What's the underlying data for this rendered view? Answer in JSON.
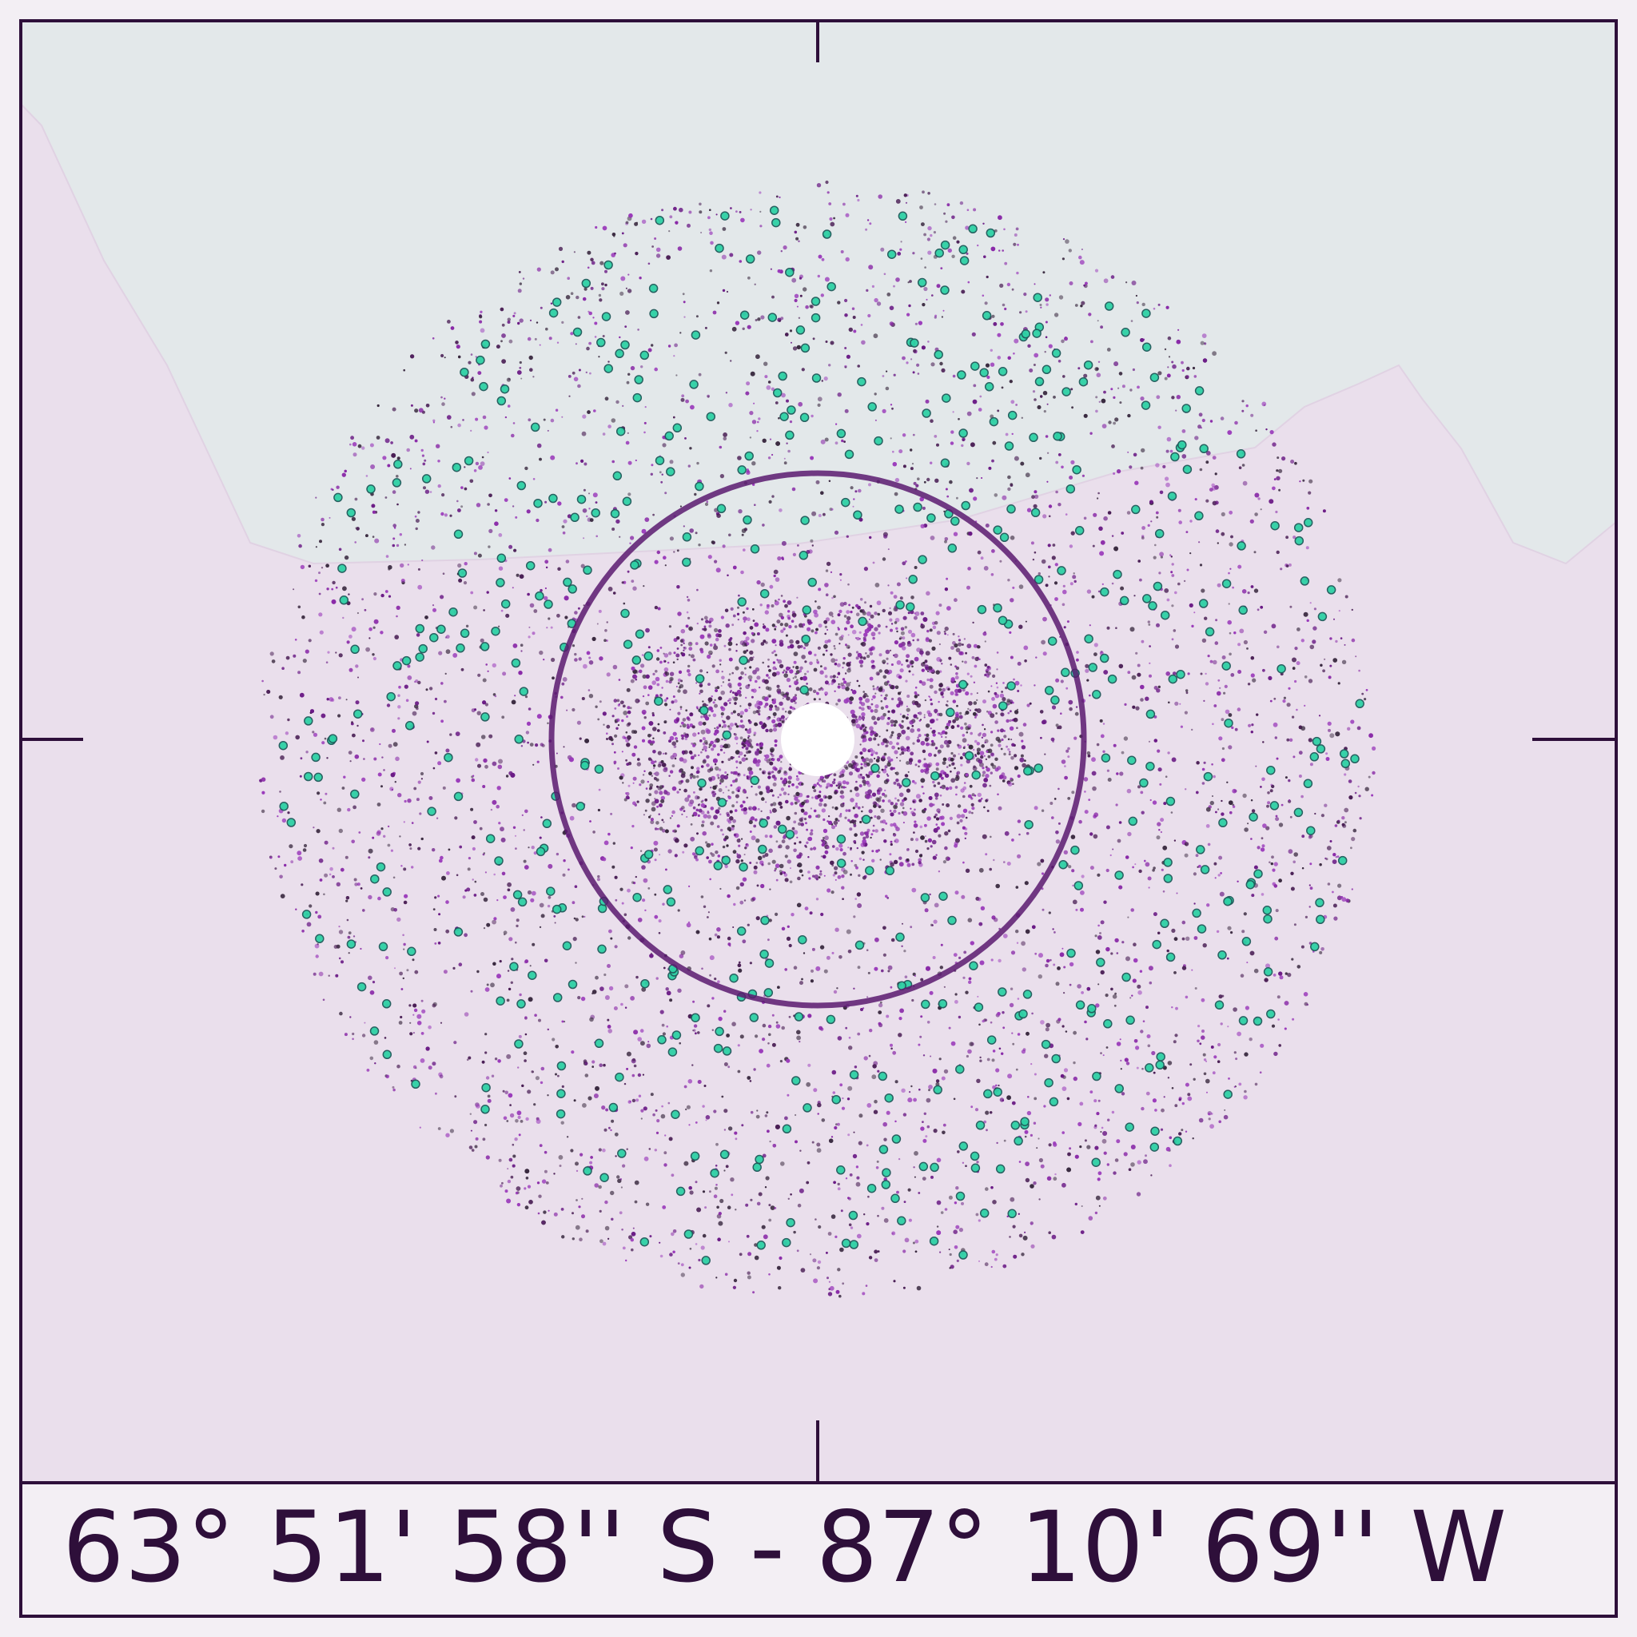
{
  "coordinates": "63° 51' 58'' S - 87° 10' 69'' W"
}
